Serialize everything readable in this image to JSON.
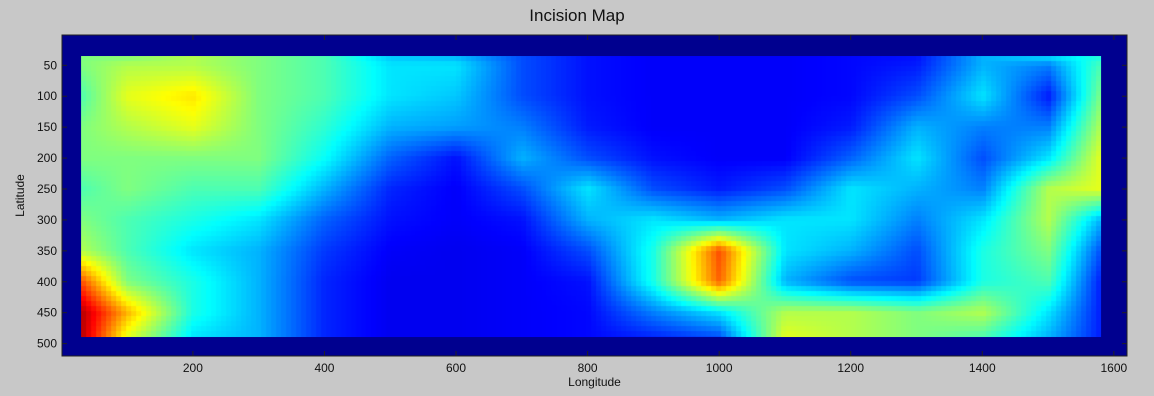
{
  "chart_data": {
    "type": "heatmap",
    "title": "Incision Map",
    "xlabel": "Longitude",
    "ylabel": "Latitude",
    "xlim": [
      1,
      1620
    ],
    "ylim": [
      520,
      1
    ],
    "xticks": [
      200,
      400,
      600,
      800,
      1000,
      1200,
      1400,
      1600
    ],
    "yticks": [
      50,
      100,
      150,
      200,
      250,
      300,
      350,
      400,
      450,
      500
    ],
    "colormap": "jet",
    "background_value_color": "#00008f",
    "data_extent": {
      "x": [
        30,
        1580
      ],
      "y": [
        35,
        490
      ]
    },
    "field": {
      "x": [
        30,
        100,
        200,
        300,
        400,
        500,
        600,
        700,
        800,
        900,
        1000,
        1100,
        1200,
        1300,
        1400,
        1500,
        1580
      ],
      "y": [
        35,
        50,
        100,
        150,
        200,
        250,
        300,
        350,
        400,
        450,
        490
      ],
      "values": [
        [
          0.5,
          0.5,
          0.55,
          0.5,
          0.45,
          0.32,
          0.3,
          0.2,
          0.14,
          0.12,
          0.12,
          0.12,
          0.13,
          0.14,
          0.3,
          0.35,
          0.4
        ],
        [
          0.5,
          0.55,
          0.55,
          0.5,
          0.45,
          0.35,
          0.35,
          0.2,
          0.14,
          0.12,
          0.12,
          0.12,
          0.13,
          0.15,
          0.3,
          0.25,
          0.45
        ],
        [
          0.45,
          0.6,
          0.65,
          0.5,
          0.45,
          0.35,
          0.32,
          0.2,
          0.14,
          0.12,
          0.12,
          0.12,
          0.13,
          0.2,
          0.35,
          0.15,
          0.5
        ],
        [
          0.5,
          0.55,
          0.6,
          0.5,
          0.42,
          0.3,
          0.28,
          0.25,
          0.15,
          0.12,
          0.12,
          0.12,
          0.15,
          0.3,
          0.25,
          0.25,
          0.55
        ],
        [
          0.5,
          0.5,
          0.5,
          0.5,
          0.38,
          0.22,
          0.14,
          0.3,
          0.2,
          0.14,
          0.12,
          0.12,
          0.22,
          0.35,
          0.2,
          0.35,
          0.6
        ],
        [
          0.45,
          0.5,
          0.45,
          0.45,
          0.3,
          0.16,
          0.12,
          0.2,
          0.35,
          0.2,
          0.15,
          0.2,
          0.35,
          0.3,
          0.25,
          0.55,
          0.6
        ],
        [
          0.5,
          0.45,
          0.4,
          0.35,
          0.22,
          0.14,
          0.12,
          0.14,
          0.3,
          0.35,
          0.3,
          0.35,
          0.35,
          0.25,
          0.35,
          0.55,
          0.3
        ],
        [
          0.55,
          0.45,
          0.35,
          0.3,
          0.18,
          0.12,
          0.11,
          0.12,
          0.2,
          0.4,
          0.8,
          0.35,
          0.3,
          0.2,
          0.4,
          0.5,
          0.2
        ],
        [
          0.8,
          0.5,
          0.4,
          0.3,
          0.16,
          0.11,
          0.11,
          0.12,
          0.14,
          0.4,
          0.78,
          0.3,
          0.2,
          0.18,
          0.4,
          0.45,
          0.15
        ],
        [
          0.95,
          0.7,
          0.4,
          0.3,
          0.16,
          0.11,
          0.11,
          0.12,
          0.13,
          0.25,
          0.35,
          0.55,
          0.55,
          0.5,
          0.55,
          0.35,
          0.15
        ],
        [
          0.95,
          0.6,
          0.35,
          0.3,
          0.16,
          0.11,
          0.11,
          0.12,
          0.13,
          0.16,
          0.2,
          0.6,
          0.55,
          0.5,
          0.45,
          0.3,
          0.15
        ]
      ]
    }
  }
}
